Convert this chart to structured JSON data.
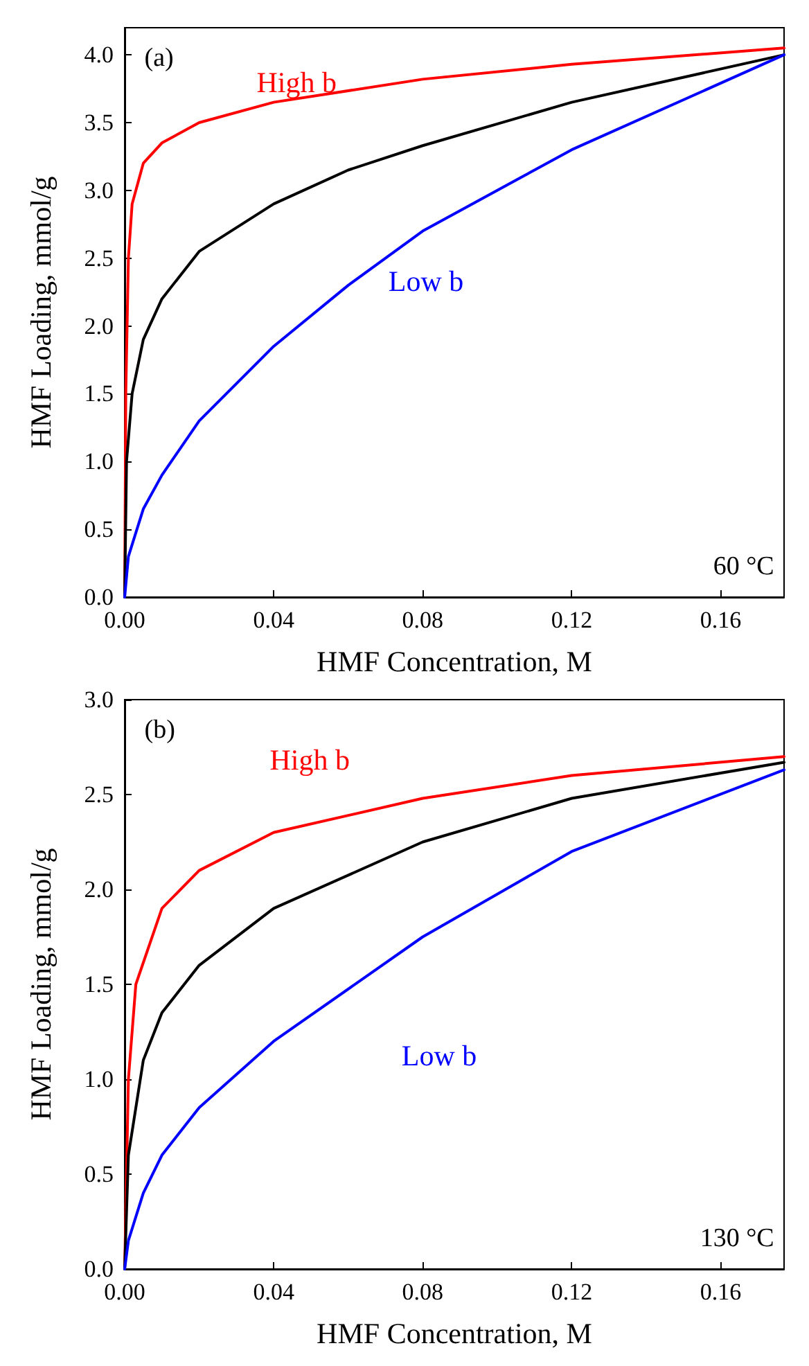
{
  "chart_data": [
    {
      "type": "line",
      "xlabel": "HMF Concentration, M",
      "ylabel": "HMF Loading, mmol/g",
      "xlim": [
        0,
        0.177
      ],
      "ylim": [
        0,
        4.2
      ],
      "xticks": [
        {
          "value": 0,
          "label": "0.00"
        },
        {
          "value": 0.04,
          "label": "0.04"
        },
        {
          "value": 0.08,
          "label": "0.08"
        },
        {
          "value": 0.12,
          "label": "0.12"
        },
        {
          "value": 0.16,
          "label": "0.16"
        }
      ],
      "yticks": [
        {
          "value": 0,
          "label": "0.0"
        },
        {
          "value": 0.5,
          "label": "0.5"
        },
        {
          "value": 1,
          "label": "1.0"
        },
        {
          "value": 1.5,
          "label": "1.5"
        },
        {
          "value": 2,
          "label": "2.0"
        },
        {
          "value": 2.5,
          "label": "2.5"
        },
        {
          "value": 3,
          "label": "3.0"
        },
        {
          "value": 3.5,
          "label": "3.5"
        },
        {
          "value": 4,
          "label": "4.0"
        }
      ],
      "series": [
        {
          "color": "#ff0000",
          "x": [
            0,
            0.0003,
            0.001,
            0.002,
            0.005,
            0.01,
            0.02,
            0.04,
            0.08,
            0.12,
            0.177
          ],
          "values": [
            0,
            1.5,
            2.5,
            2.9,
            3.2,
            3.35,
            3.5,
            3.65,
            3.82,
            3.93,
            4.05
          ]
        },
        {
          "color": "#000000",
          "x": [
            0,
            0.0005,
            0.002,
            0.005,
            0.01,
            0.02,
            0.04,
            0.06,
            0.08,
            0.12,
            0.177
          ],
          "values": [
            0,
            1.0,
            1.5,
            1.9,
            2.2,
            2.55,
            2.9,
            3.15,
            3.33,
            3.65,
            4.0
          ]
        },
        {
          "color": "#0000ff",
          "x": [
            0,
            0.001,
            0.005,
            0.01,
            0.02,
            0.04,
            0.06,
            0.08,
            0.12,
            0.177
          ],
          "values": [
            0,
            0.3,
            0.65,
            0.9,
            1.3,
            1.85,
            2.3,
            2.7,
            3.3,
            4.0
          ]
        }
      ],
      "annotations": [
        "(a)",
        "60 °C",
        "High b",
        "Low b"
      ]
    },
    {
      "type": "line",
      "xlabel": "HMF Concentration, M",
      "ylabel": "HMF Loading, mmol/g",
      "xlim": [
        0,
        0.177
      ],
      "ylim": [
        0,
        3
      ],
      "xticks": [
        {
          "value": 0,
          "label": "0.00"
        },
        {
          "value": 0.04,
          "label": "0.04"
        },
        {
          "value": 0.08,
          "label": "0.08"
        },
        {
          "value": 0.12,
          "label": "0.12"
        },
        {
          "value": 0.16,
          "label": "0.16"
        }
      ],
      "yticks": [
        {
          "value": 0,
          "label": "0.0"
        },
        {
          "value": 0.5,
          "label": "0.5"
        },
        {
          "value": 1,
          "label": "1.0"
        },
        {
          "value": 1.5,
          "label": "1.5"
        },
        {
          "value": 2,
          "label": "2.0"
        },
        {
          "value": 2.5,
          "label": "2.5"
        },
        {
          "value": 3,
          "label": "3.0"
        }
      ],
      "series": [
        {
          "color": "#ff0000",
          "x": [
            0,
            0.001,
            0.003,
            0.01,
            0.02,
            0.04,
            0.08,
            0.12,
            0.177
          ],
          "values": [
            0,
            1.0,
            1.5,
            1.9,
            2.1,
            2.3,
            2.48,
            2.6,
            2.7
          ]
        },
        {
          "color": "#000000",
          "x": [
            0,
            0.001,
            0.005,
            0.01,
            0.02,
            0.04,
            0.08,
            0.12,
            0.177
          ],
          "values": [
            0,
            0.6,
            1.1,
            1.35,
            1.6,
            1.9,
            2.25,
            2.48,
            2.67
          ]
        },
        {
          "color": "#0000ff",
          "x": [
            0,
            0.001,
            0.005,
            0.01,
            0.02,
            0.04,
            0.08,
            0.12,
            0.177
          ],
          "values": [
            0,
            0.15,
            0.4,
            0.6,
            0.85,
            1.2,
            1.75,
            2.2,
            2.63
          ]
        }
      ],
      "annotations": [
        "(b)",
        "130 °C",
        "High b",
        "Low b"
      ]
    }
  ]
}
